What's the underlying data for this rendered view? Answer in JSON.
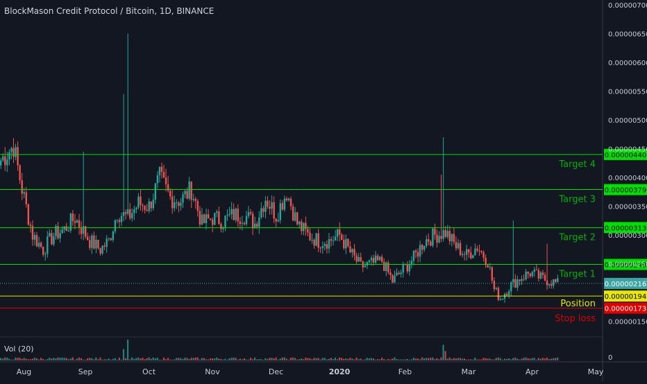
{
  "title": "BlockMason Credit Protocol / Bitcoin, 1D, BINANCE",
  "volume_label": "Vol (20)",
  "volume_axis_label": "0",
  "colors": {
    "background": "#131722",
    "up": "#26a69a",
    "down": "#ef5350",
    "target": "#00e000",
    "position": "#e8e800",
    "stop": "#e00000",
    "current": "#3aa5a2",
    "axis_text": "#c8cbd3"
  },
  "chart_data": {
    "type": "candlestick",
    "title": "BlockMason Credit Protocol / Bitcoin, 1D, BINANCE",
    "ylim": [
      1.4e-06,
      7e-06
    ],
    "y_ticks": [
      "0.00000700",
      "0.00000650",
      "0.00000600",
      "0.00000550",
      "0.00000500",
      "0.00000450",
      "0.00000400",
      "0.00000350",
      "0.00000300",
      "0.00000250",
      "0.00000150"
    ],
    "x_ticks": [
      "Aug",
      "Sep",
      "Oct",
      "Nov",
      "Dec",
      "2020",
      "Feb",
      "Mar",
      "Apr",
      "May"
    ],
    "current_price": "0.00000216",
    "levels": [
      {
        "label": "Target 4",
        "price": "0.00000440",
        "value": 4.4e-06,
        "kind": "target"
      },
      {
        "label": "Target 3",
        "price": "0.00000379",
        "value": 3.79e-06,
        "kind": "target"
      },
      {
        "label": "Target 2",
        "price": "0.00000313",
        "value": 3.13e-06,
        "kind": "target"
      },
      {
        "label": "Target 1",
        "price": "0.00000249",
        "value": 2.49e-06,
        "kind": "target"
      },
      {
        "label": "Position",
        "price": "0.00000194",
        "value": 1.94e-06,
        "kind": "position"
      },
      {
        "label": "Stop loss",
        "price": "0.00000173",
        "value": 1.73e-06,
        "kind": "stop"
      }
    ],
    "anchors": [
      [
        0,
        4.3e-06
      ],
      [
        6,
        4.55e-06
      ],
      [
        10,
        3.8e-06
      ],
      [
        15,
        3e-06
      ],
      [
        20,
        2.75e-06
      ],
      [
        25,
        3e-06
      ],
      [
        30,
        3.1e-06
      ],
      [
        35,
        3.3e-06
      ],
      [
        42,
        2.9e-06
      ],
      [
        47,
        2.75e-06
      ],
      [
        51,
        2.9e-06
      ],
      [
        55,
        3.4e-06
      ],
      [
        60,
        3.3e-06
      ],
      [
        65,
        3.55e-06
      ],
      [
        70,
        3.5e-06
      ],
      [
        75,
        4e-06
      ],
      [
        80,
        3.65e-06
      ],
      [
        85,
        3.6e-06
      ],
      [
        90,
        3.8e-06
      ],
      [
        95,
        3.2e-06
      ],
      [
        100,
        3.3e-06
      ],
      [
        105,
        3.25e-06
      ],
      [
        110,
        3.35e-06
      ],
      [
        115,
        3.35e-06
      ],
      [
        120,
        3.2e-06
      ],
      [
        125,
        3.65e-06
      ],
      [
        130,
        3.35e-06
      ],
      [
        135,
        3.75e-06
      ],
      [
        140,
        3.2e-06
      ],
      [
        145,
        3e-06
      ],
      [
        150,
        2.9e-06
      ],
      [
        155,
        2.9e-06
      ],
      [
        160,
        3e-06
      ],
      [
        165,
        2.7e-06
      ],
      [
        170,
        2.45e-06
      ],
      [
        175,
        2.5e-06
      ],
      [
        180,
        2.55e-06
      ],
      [
        185,
        2.2e-06
      ],
      [
        190,
        2.4e-06
      ],
      [
        195,
        2.6e-06
      ],
      [
        200,
        2.9e-06
      ],
      [
        205,
        3e-06
      ],
      [
        210,
        3.05e-06
      ],
      [
        215,
        2.8e-06
      ],
      [
        220,
        2.65e-06
      ],
      [
        225,
        2.8e-06
      ],
      [
        230,
        2.55e-06
      ],
      [
        233,
        2.05e-06
      ],
      [
        236,
        1.9e-06
      ],
      [
        240,
        2.1e-06
      ],
      [
        245,
        2.25e-06
      ],
      [
        250,
        2.35e-06
      ],
      [
        255,
        2.25e-06
      ],
      [
        260,
        2.2e-06
      ],
      [
        263,
        2.15e-06
      ]
    ],
    "spikes": [
      {
        "day": 39,
        "high": 4.45e-06
      },
      {
        "day": 58,
        "high": 5.45e-06
      },
      {
        "day": 60,
        "high": 6.5e-06
      },
      {
        "day": 209,
        "high": 4.7e-06
      },
      {
        "day": 208,
        "high": 4.05e-06
      },
      {
        "day": 242,
        "high": 3.25e-06
      },
      {
        "day": 258,
        "high": 2.85e-06
      }
    ],
    "volume_spikes": [
      {
        "day": 58,
        "value": 0.55
      },
      {
        "day": 60,
        "value": 1.0
      },
      {
        "day": 209,
        "value": 0.75
      },
      {
        "day": 210,
        "value": 0.45
      }
    ]
  }
}
